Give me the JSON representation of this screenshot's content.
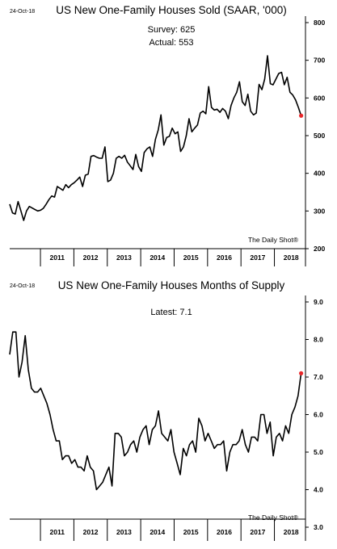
{
  "chart_data": [
    {
      "type": "line",
      "date_label": "24-Oct-18",
      "title": "US New One-Family Houses Sold (SAAR, '000)",
      "annotations": [
        "Survey: 625",
        "Actual:  553"
      ],
      "source": "The Daily Shot®",
      "y_ticks": [
        "200",
        "300",
        "400",
        "500",
        "600",
        "700",
        "800"
      ],
      "ylim": [
        200,
        800
      ],
      "x_ticks": [
        "2011",
        "2012",
        "2013",
        "2014",
        "2015",
        "2016",
        "2017",
        "2018"
      ],
      "x_start": 2010.0,
      "x_step": 0.08333,
      "line_color": "#000000",
      "marker_color": "#e8272a",
      "series": [
        {
          "values": [
            318,
            295,
            292,
            325,
            300,
            275,
            300,
            312,
            308,
            304,
            300,
            302,
            307,
            318,
            330,
            340,
            337,
            365,
            360,
            355,
            370,
            362,
            370,
            375,
            382,
            390,
            365,
            395,
            398,
            445,
            447,
            443,
            440,
            440,
            470,
            378,
            382,
            400,
            440,
            445,
            440,
            448,
            430,
            420,
            410,
            450,
            418,
            405,
            455,
            465,
            470,
            445,
            490,
            515,
            555,
            475,
            495,
            498,
            520,
            505,
            510,
            458,
            470,
            500,
            545,
            510,
            520,
            528,
            560,
            565,
            558,
            630,
            575,
            568,
            570,
            562,
            572,
            565,
            545,
            580,
            600,
            615,
            643,
            590,
            580,
            610,
            565,
            555,
            560,
            636,
            622,
            650,
            712,
            638,
            635,
            650,
            665,
            668,
            635,
            655,
            615,
            608,
            595,
            575,
            553
          ]
        }
      ]
    },
    {
      "type": "line",
      "date_label": "24-Oct-18",
      "title": "US New One-Family Houses Months of Supply",
      "annotations": [
        "Latest:  7.1"
      ],
      "source": "The Daily Shot®",
      "y_ticks": [
        "3.0",
        "4.0",
        "5.0",
        "6.0",
        "7.0",
        "8.0",
        "9.0"
      ],
      "ylim": [
        3,
        9
      ],
      "x_ticks": [
        "2011",
        "2012",
        "2013",
        "2014",
        "2015",
        "2016",
        "2017",
        "2018"
      ],
      "x_start": 2010.0,
      "x_step": 0.08333,
      "line_color": "#000000",
      "marker_color": "#e8272a",
      "series": [
        {
          "values": [
            7.6,
            8.2,
            8.2,
            7.0,
            7.4,
            8.1,
            7.2,
            6.7,
            6.6,
            6.6,
            6.7,
            6.5,
            6.3,
            6.0,
            5.6,
            5.3,
            5.3,
            4.8,
            4.9,
            4.9,
            4.7,
            4.8,
            4.6,
            4.6,
            4.5,
            4.9,
            4.6,
            4.5,
            4.0,
            4.1,
            4.2,
            4.4,
            4.6,
            4.1,
            5.5,
            5.5,
            5.4,
            4.9,
            5.0,
            5.2,
            5.3,
            5.0,
            5.4,
            5.6,
            5.7,
            5.2,
            5.6,
            5.7,
            6.1,
            5.5,
            5.4,
            5.3,
            5.6,
            5.0,
            4.7,
            4.4,
            5.1,
            4.9,
            5.2,
            5.3,
            5.0,
            5.9,
            5.7,
            5.3,
            5.5,
            5.3,
            5.1,
            5.2,
            5.2,
            5.3,
            4.5,
            5.0,
            5.2,
            5.2,
            5.3,
            5.6,
            5.2,
            5.0,
            5.4,
            5.4,
            5.3,
            6.0,
            6.0,
            5.5,
            5.8,
            4.9,
            5.4,
            5.5,
            5.3,
            5.7,
            5.5,
            6.0,
            6.2,
            6.5,
            7.1
          ]
        }
      ]
    }
  ]
}
